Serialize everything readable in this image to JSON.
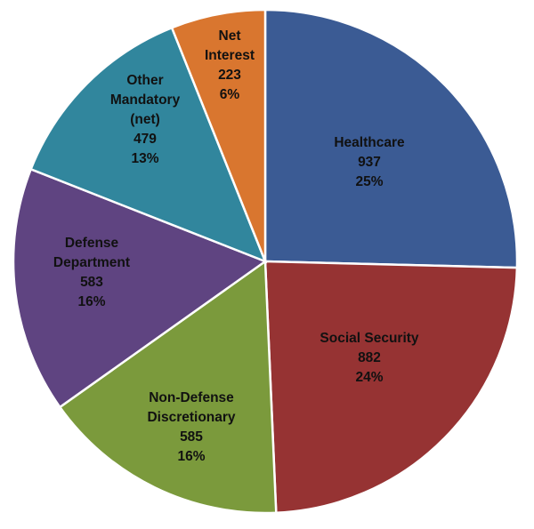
{
  "chart_data": {
    "type": "pie",
    "title": "",
    "start": "12 o'clock, clockwise",
    "slices": [
      {
        "label": [
          "Healthcare"
        ],
        "value": 937,
        "percent": "25%",
        "color": "#3b5b94"
      },
      {
        "label": [
          "Social Security"
        ],
        "value": 882,
        "percent": "24%",
        "color": "#963333"
      },
      {
        "label": [
          "Non-Defense",
          "Discretionary"
        ],
        "value": 585,
        "percent": "16%",
        "color": "#7b9a3c"
      },
      {
        "label": [
          "Defense",
          "Department"
        ],
        "value": 583,
        "percent": "16%",
        "color": "#5f4481"
      },
      {
        "label": [
          "Other",
          "Mandatory",
          "(net)"
        ],
        "value": 479,
        "percent": "13%",
        "color": "#31869d"
      },
      {
        "label": [
          "Net",
          "Interest"
        ],
        "value": 223,
        "percent": "6%",
        "color": "#d9762f"
      }
    ]
  }
}
